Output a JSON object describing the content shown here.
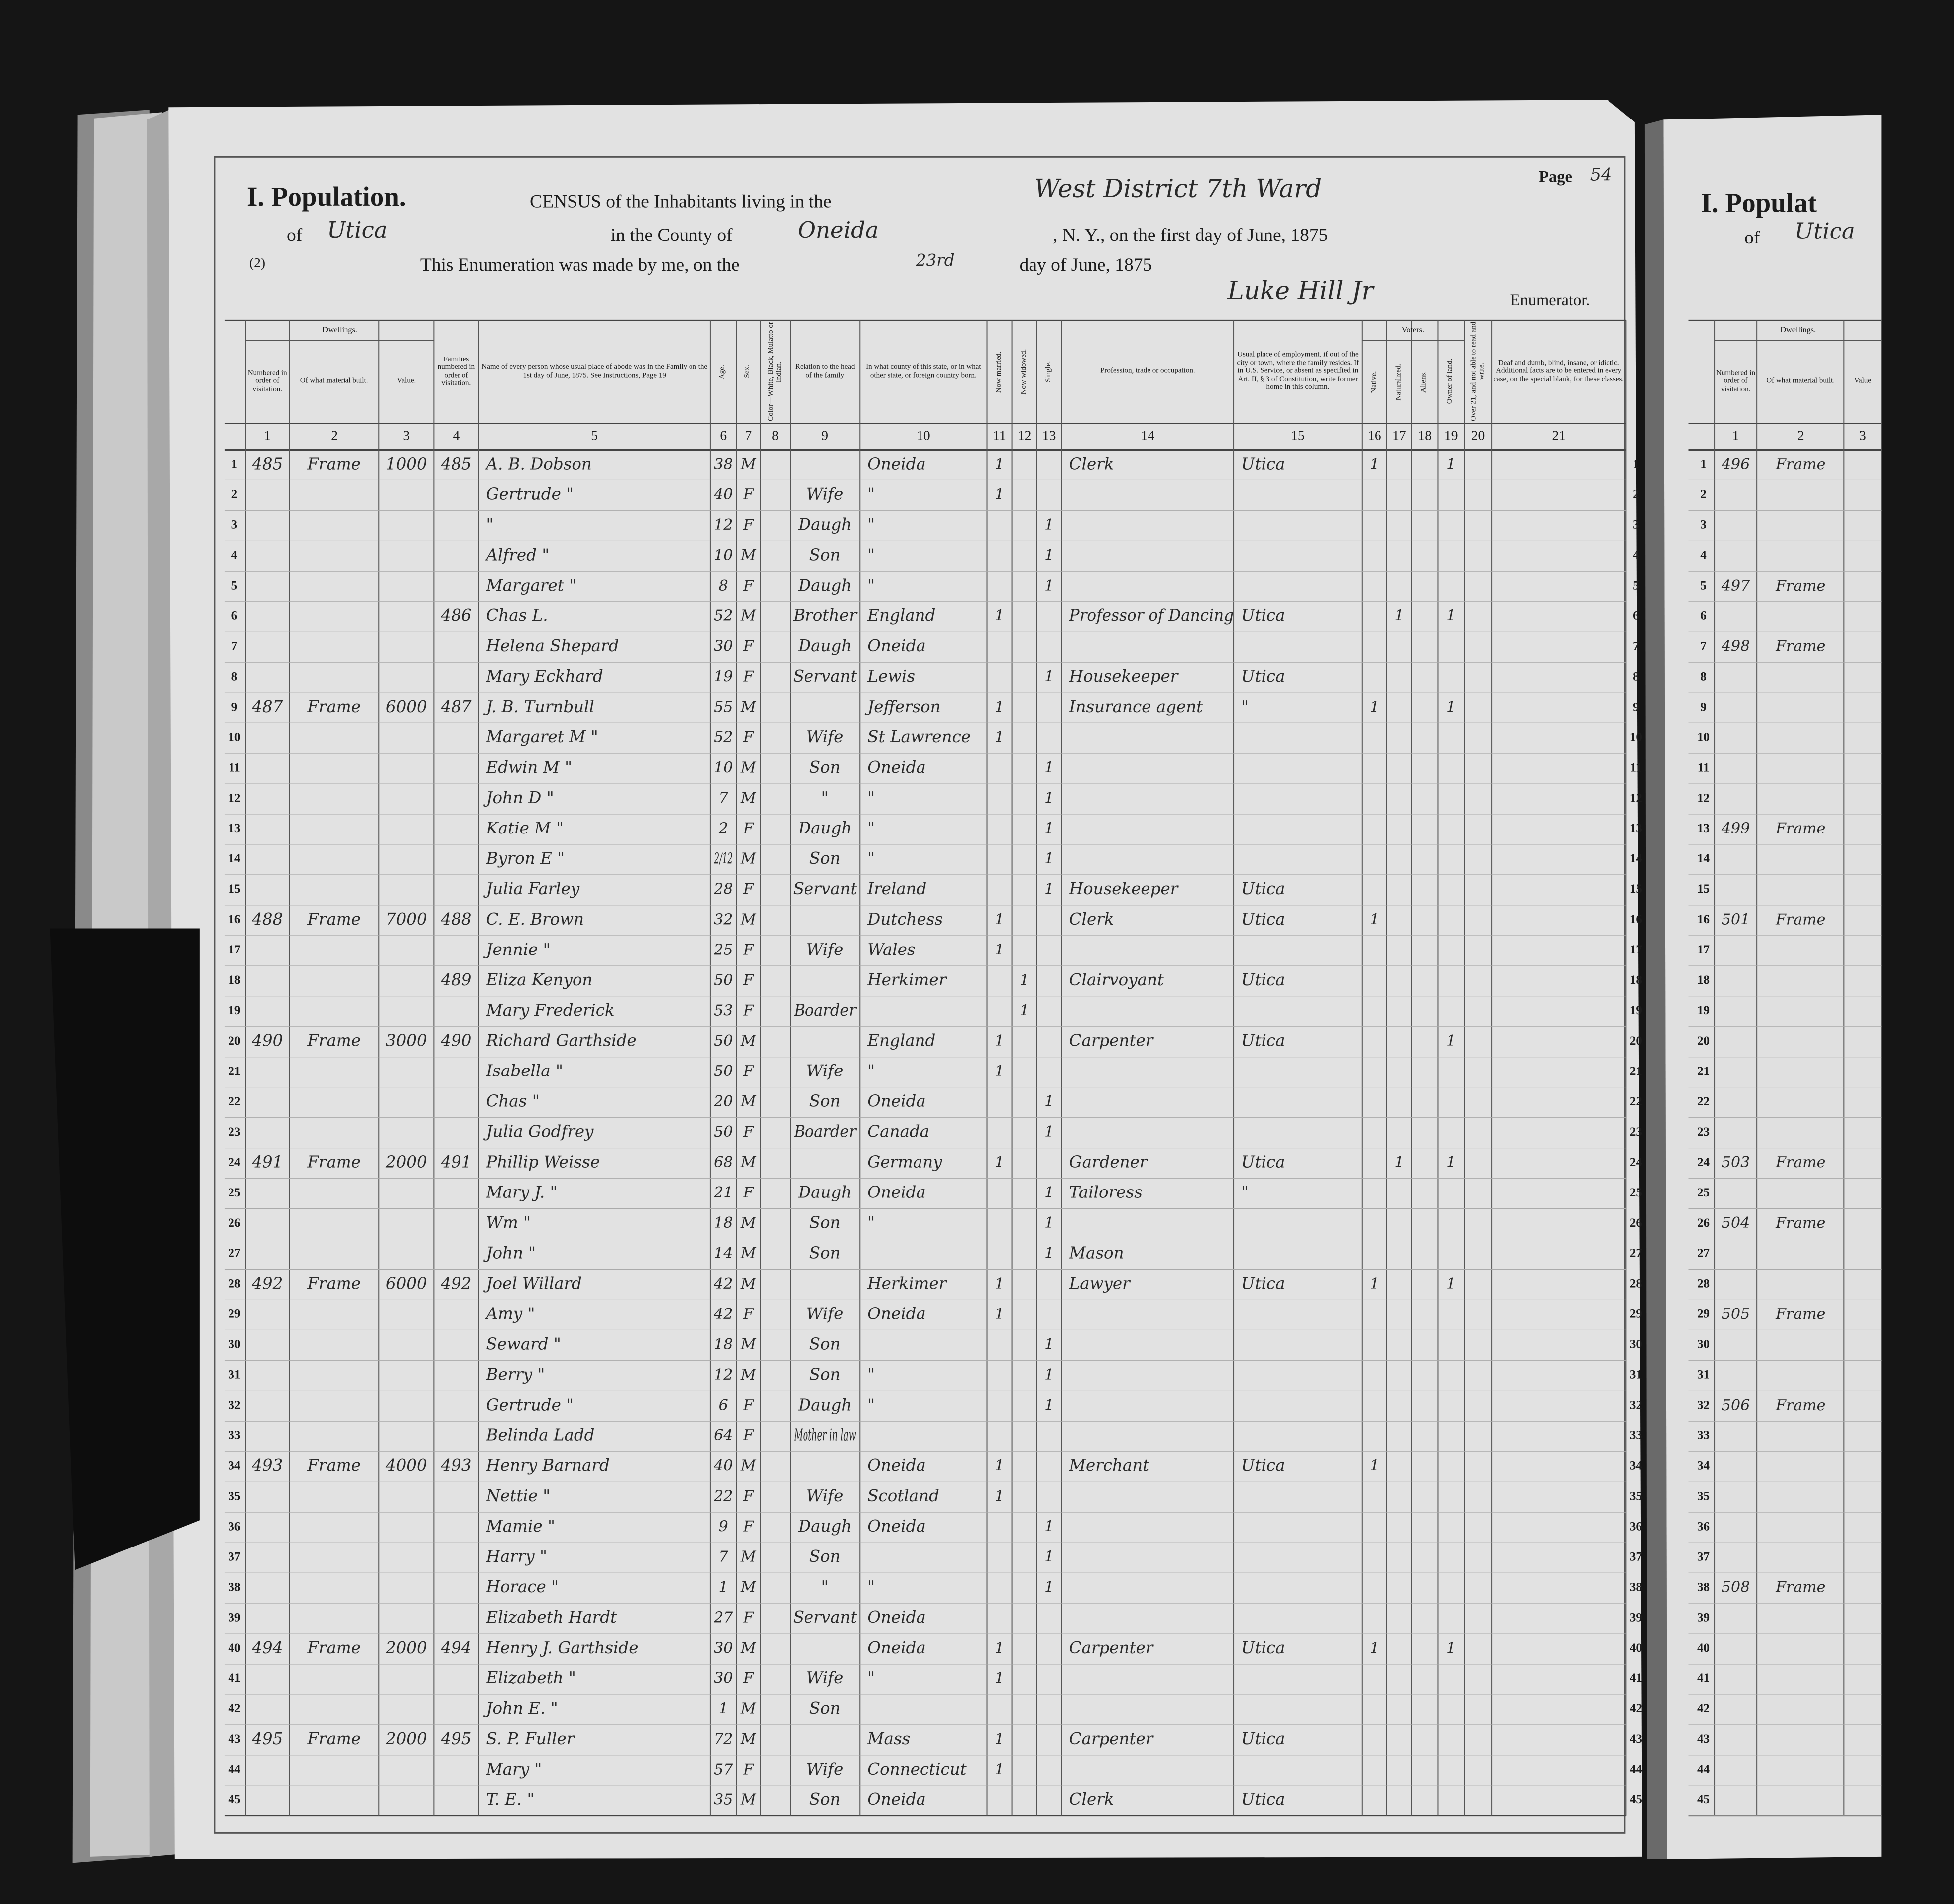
{
  "header": {
    "title": "I. Population.",
    "census_line": "CENSUS of the Inhabitants living in the",
    "district": "West District 7th Ward",
    "page_label": "Page",
    "page_number": "54",
    "of_label": "of",
    "city": "Utica",
    "county_label": "in the County of",
    "county": "Oneida",
    "date_line": ", N. Y., on the first day of June, 1875",
    "sheet_number": "(2)",
    "enumeration_line": "This Enumeration was made by me, on the",
    "enumeration_day": "23rd",
    "enumeration_month": "day of June, 1875",
    "enumerator": "Luke Hill Jr",
    "enumerator_label": "Enumerator."
  },
  "groups": {
    "dwellings": "Dwellings.",
    "voters": "Voters."
  },
  "columns": [
    {
      "number": 1,
      "label": "Numbered in order of visitation."
    },
    {
      "number": 2,
      "label": "Of what material built."
    },
    {
      "number": 3,
      "label": "Value."
    },
    {
      "number": 4,
      "label": "Families numbered in order of visitation."
    },
    {
      "number": 5,
      "label": "Name of every person whose usual place of abode was in the Family on the 1st day of June, 1875. See Instructions, Page 19"
    },
    {
      "number": 6,
      "label": "Age."
    },
    {
      "number": 7,
      "label": "Sex."
    },
    {
      "number": 8,
      "label": "Color—White, Black, Mulatto or Indian."
    },
    {
      "number": 9,
      "label": "Relation to the head of the family"
    },
    {
      "number": 10,
      "label": "In what county of this state, or in what other state, or foreign country born."
    },
    {
      "number": 11,
      "label": "Now married."
    },
    {
      "number": 12,
      "label": "Now widowed."
    },
    {
      "number": 13,
      "label": "Single."
    },
    {
      "number": 14,
      "label": "Profession, trade or occupation."
    },
    {
      "number": 15,
      "label": "Usual place of employment, if out of the city or town, where the family resides. If in U.S. Service, or absent as specified in Art. II, § 3 of Constitution, write former home in this column."
    },
    {
      "number": 16,
      "label": "Native."
    },
    {
      "number": 17,
      "label": "Naturalized."
    },
    {
      "number": 18,
      "label": "Aliens."
    },
    {
      "number": 19,
      "label": "Owner of land."
    },
    {
      "number": 20,
      "label": "Over 21, and not able to read and write."
    },
    {
      "number": 21,
      "label": "Deaf and dumb, blind, insane, or idiotic. Additional facts are to be entered in every case, on the special blank, for these classes."
    }
  ],
  "rows": [
    {
      "line": 1,
      "1": 485,
      "2": "Frame",
      "3": 1000,
      "4": 485,
      "5": "A. B. Dobson",
      "6": 38,
      "7": "M",
      "10": "Oneida",
      "11": 1,
      "14": "Clerk",
      "15": "Utica",
      "16": 1,
      "19": 1
    },
    {
      "line": 2,
      "5": "Gertrude \"",
      "6": 40,
      "7": "F",
      "9": "Wife",
      "10": "\"",
      "11": 1
    },
    {
      "line": 3,
      "5": "\"",
      "6": 12,
      "7": "F",
      "9": "Daugh",
      "10": "\"",
      "13": 1
    },
    {
      "line": 4,
      "5": "Alfred \"",
      "6": 10,
      "7": "M",
      "9": "Son",
      "10": "\"",
      "13": 1
    },
    {
      "line": 5,
      "5": "Margaret \"",
      "6": 8,
      "7": "F",
      "9": "Daugh",
      "10": "\"",
      "13": 1
    },
    {
      "line": 6,
      "4": 486,
      "5": "Chas L.",
      "6": 52,
      "7": "M",
      "9": "Brother",
      "10": "England",
      "11": 1,
      "14": "Professor of Dancing",
      "15": "Utica",
      "17": 1,
      "19": 1
    },
    {
      "line": 7,
      "5": "Helena Shepard",
      "6": 30,
      "7": "F",
      "9": "Daugh",
      "10": "Oneida"
    },
    {
      "line": 8,
      "5": "Mary Eckhard",
      "6": 19,
      "7": "F",
      "9": "Servant",
      "10": "Lewis",
      "13": 1,
      "14": "Housekeeper",
      "15": "Utica"
    },
    {
      "line": 9,
      "1": 487,
      "2": "Frame",
      "3": 6000,
      "4": 487,
      "5": "J. B. Turnbull",
      "6": 55,
      "7": "M",
      "10": "Jefferson",
      "11": 1,
      "14": "Insurance agent",
      "15": "\"",
      "16": 1,
      "19": 1
    },
    {
      "line": 10,
      "5": "Margaret M \"",
      "6": 52,
      "7": "F",
      "9": "Wife",
      "10": "St Lawrence",
      "11": 1
    },
    {
      "line": 11,
      "5": "Edwin M \"",
      "6": 10,
      "7": "M",
      "9": "Son",
      "10": "Oneida",
      "13": 1
    },
    {
      "line": 12,
      "5": "John D \"",
      "6": 7,
      "7": "M",
      "9": "\"",
      "10": "\"",
      "13": 1
    },
    {
      "line": 13,
      "5": "Katie M \"",
      "6": 2,
      "7": "F",
      "9": "Daugh",
      "10": "\"",
      "13": 1
    },
    {
      "line": 14,
      "5": "Byron E \"",
      "6": "2/12",
      "7": "M",
      "9": "Son",
      "10": "\"",
      "13": 1
    },
    {
      "line": 15,
      "5": "Julia Farley",
      "6": 28,
      "7": "F",
      "9": "Servant",
      "10": "Ireland",
      "13": 1,
      "14": "Housekeeper",
      "15": "Utica"
    },
    {
      "line": 16,
      "1": 488,
      "2": "Frame",
      "3": 7000,
      "4": 488,
      "5": "C. E. Brown",
      "6": 32,
      "7": "M",
      "10": "Dutchess",
      "11": 1,
      "14": "Clerk",
      "15": "Utica",
      "16": 1
    },
    {
      "line": 17,
      "5": "Jennie \"",
      "6": 25,
      "7": "F",
      "9": "Wife",
      "10": "Wales",
      "11": 1
    },
    {
      "line": 18,
      "4": 489,
      "5": "Eliza Kenyon",
      "6": 50,
      "7": "F",
      "10": "Herkimer",
      "12": 1,
      "14": "Clairvoyant",
      "15": "Utica"
    },
    {
      "line": 19,
      "5": "Mary Frederick",
      "6": 53,
      "7": "F",
      "9": "Boarder",
      "12": 1
    },
    {
      "line": 20,
      "1": 490,
      "2": "Frame",
      "3": 3000,
      "4": 490,
      "5": "Richard Garthside",
      "6": 50,
      "7": "M",
      "10": "England",
      "11": 1,
      "14": "Carpenter",
      "15": "Utica",
      "19": 1
    },
    {
      "line": 21,
      "5": "Isabella \"",
      "6": 50,
      "7": "F",
      "9": "Wife",
      "10": "\"",
      "11": 1
    },
    {
      "line": 22,
      "5": "Chas \"",
      "6": 20,
      "7": "M",
      "9": "Son",
      "10": "Oneida",
      "13": 1
    },
    {
      "line": 23,
      "5": "Julia Godfrey",
      "6": 50,
      "7": "F",
      "9": "Boarder",
      "10": "Canada",
      "13": 1
    },
    {
      "line": 24,
      "1": 491,
      "2": "Frame",
      "3": 2000,
      "4": 491,
      "5": "Phillip Weisse",
      "6": 68,
      "7": "M",
      "10": "Germany",
      "11": 1,
      "14": "Gardener",
      "15": "Utica",
      "17": 1,
      "19": 1
    },
    {
      "line": 25,
      "5": "Mary J. \"",
      "6": 21,
      "7": "F",
      "9": "Daugh",
      "10": "Oneida",
      "13": 1,
      "14": "Tailoress",
      "15": "\""
    },
    {
      "line": 26,
      "5": "Wm \"",
      "6": 18,
      "7": "M",
      "9": "Son",
      "10": "\"",
      "13": 1
    },
    {
      "line": 27,
      "5": "John \"",
      "6": 14,
      "7": "M",
      "9": "Son",
      "13": 1,
      "14": "Mason"
    },
    {
      "line": 28,
      "1": 492,
      "2": "Frame",
      "3": 6000,
      "4": 492,
      "5": "Joel Willard",
      "6": 42,
      "7": "M",
      "10": "Herkimer",
      "11": 1,
      "14": "Lawyer",
      "15": "Utica",
      "16": 1,
      "19": 1
    },
    {
      "line": 29,
      "5": "Amy \"",
      "6": 42,
      "7": "F",
      "9": "Wife",
      "10": "Oneida",
      "11": 1
    },
    {
      "line": 30,
      "5": "Seward \"",
      "6": 18,
      "7": "M",
      "9": "Son",
      "13": 1
    },
    {
      "line": 31,
      "5": "Berry \"",
      "6": 12,
      "7": "M",
      "9": "Son",
      "10": "\"",
      "13": 1
    },
    {
      "line": 32,
      "5": "Gertrude \"",
      "6": 6,
      "7": "F",
      "9": "Daugh",
      "10": "\"",
      "13": 1
    },
    {
      "line": 33,
      "5": "Belinda Ladd",
      "6": 64,
      "7": "F",
      "9": "Mother in law"
    },
    {
      "line": 34,
      "1": 493,
      "2": "Frame",
      "3": 4000,
      "4": 493,
      "5": "Henry Barnard",
      "6": 40,
      "7": "M",
      "10": "Oneida",
      "11": 1,
      "14": "Merchant",
      "15": "Utica",
      "16": 1
    },
    {
      "line": 35,
      "5": "Nettie \"",
      "6": 22,
      "7": "F",
      "9": "Wife",
      "10": "Scotland",
      "11": 1
    },
    {
      "line": 36,
      "5": "Mamie \"",
      "6": 9,
      "7": "F",
      "9": "Daugh",
      "10": "Oneida",
      "13": 1
    },
    {
      "line": 37,
      "5": "Harry \"",
      "6": 7,
      "7": "M",
      "9": "Son",
      "13": 1
    },
    {
      "line": 38,
      "5": "Horace \"",
      "6": 1,
      "7": "M",
      "9": "\"",
      "10": "\"",
      "13": 1
    },
    {
      "line": 39,
      "5": "Elizabeth Hardt",
      "6": 27,
      "7": "F",
      "9": "Servant",
      "10": "Oneida"
    },
    {
      "line": 40,
      "1": 494,
      "2": "Frame",
      "3": 2000,
      "4": 494,
      "5": "Henry J. Garthside",
      "6": 30,
      "7": "M",
      "10": "Oneida",
      "11": 1,
      "14": "Carpenter",
      "15": "Utica",
      "16": 1,
      "19": 1
    },
    {
      "line": 41,
      "5": "Elizabeth \"",
      "6": 30,
      "7": "F",
      "9": "Wife",
      "10": "\"",
      "11": 1
    },
    {
      "line": 42,
      "5": "John E. \"",
      "6": 1,
      "7": "M",
      "9": "Son"
    },
    {
      "line": 43,
      "1": 495,
      "2": "Frame",
      "3": 2000,
      "4": 495,
      "5": "S. P. Fuller",
      "6": 72,
      "7": "M",
      "10": "Mass",
      "11": 1,
      "14": "Carpenter",
      "15": "Utica"
    },
    {
      "line": 44,
      "5": "Mary \"",
      "6": 57,
      "7": "F",
      "9": "Wife",
      "10": "Connecticut",
      "11": 1
    },
    {
      "line": 45,
      "5": "T. E. \"",
      "6": 35,
      "7": "M",
      "9": "Son",
      "10": "Oneida",
      "14": "Clerk",
      "15": "Utica"
    }
  ],
  "right_page": {
    "title": "I. Populat",
    "of_label": "of",
    "city": "Utica",
    "group": "Dwellings.",
    "columns": [
      {
        "number": 1,
        "label": "Numbered in order of visitation."
      },
      {
        "number": 2,
        "label": "Of what material built."
      },
      {
        "number": 3,
        "label": "Value"
      }
    ],
    "rows": [
      {
        "line": 1,
        "1": 496,
        "2": "Frame"
      },
      {
        "line": 2
      },
      {
        "line": 3
      },
      {
        "line": 4
      },
      {
        "line": 5,
        "1": 497,
        "2": "Frame"
      },
      {
        "line": 6
      },
      {
        "line": 7,
        "1": 498,
        "2": "Frame"
      },
      {
        "line": 8
      },
      {
        "line": 9
      },
      {
        "line": 10
      },
      {
        "line": 11
      },
      {
        "line": 12
      },
      {
        "line": 13,
        "1": 499,
        "2": "Frame"
      },
      {
        "line": 14
      },
      {
        "line": 15
      },
      {
        "line": 16,
        "1": 501,
        "2": "Frame"
      },
      {
        "line": 17
      },
      {
        "line": 18
      },
      {
        "line": 19
      },
      {
        "line": 20
      },
      {
        "line": 21
      },
      {
        "line": 22
      },
      {
        "line": 23
      },
      {
        "line": 24,
        "1": 503,
        "2": "Frame"
      },
      {
        "line": 25
      },
      {
        "line": 26,
        "1": 504,
        "2": "Frame"
      },
      {
        "line": 27
      },
      {
        "line": 28
      },
      {
        "line": 29,
        "1": 505,
        "2": "Frame"
      },
      {
        "line": 30
      },
      {
        "line": 31
      },
      {
        "line": 32,
        "1": 506,
        "2": "Frame"
      },
      {
        "line": 33
      },
      {
        "line": 34
      },
      {
        "line": 35
      },
      {
        "line": 36
      },
      {
        "line": 37
      },
      {
        "line": 38,
        "1": 508,
        "2": "Frame"
      },
      {
        "line": 39
      },
      {
        "line": 40
      },
      {
        "line": 41
      },
      {
        "line": 42
      },
      {
        "line": 43
      },
      {
        "line": 44
      },
      {
        "line": 45
      }
    ]
  }
}
